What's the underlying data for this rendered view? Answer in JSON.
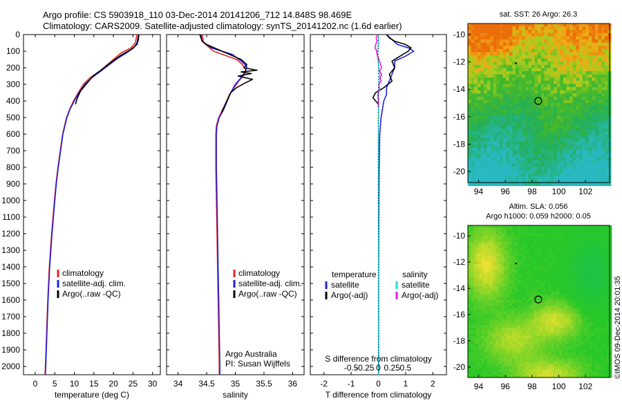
{
  "header": {
    "line1": "Argo profile: CS 5903918_110 03-Dec-2014 20141206_712 14.848S 98.469E",
    "line2": "Climatology: CARS2009. Satellite-adjusted climatology: synTS_20141202.nc (1.6d earlier)"
  },
  "stamp": "©IMOS 09-Dec-2014 20:01:35",
  "colors": {
    "climatology": "#e8231f",
    "satellite": "#1f1fe0",
    "argo": "#000000",
    "sal_satellite": "#22dcdc",
    "sal_argo": "#e020d8"
  },
  "depth_axis": {
    "range": [
      0,
      2050
    ],
    "ticks": [
      0,
      100,
      200,
      300,
      400,
      500,
      600,
      700,
      800,
      900,
      1000,
      1100,
      1200,
      1300,
      1400,
      1500,
      1600,
      1700,
      1800,
      1900,
      2000
    ]
  },
  "chart_data": [
    {
      "id": "temperature",
      "type": "line",
      "xlabel": "temperature (deg C)",
      "xlim": [
        -3,
        32
      ],
      "xticks": [
        0,
        5,
        10,
        15,
        20,
        25,
        30
      ],
      "legend": [
        "climatology",
        "satellite-adj. clim.",
        "Argo(..raw -QC)"
      ],
      "series": [
        {
          "name": "climatology",
          "color_key": "climatology",
          "depth": [
            0,
            50,
            80,
            110,
            140,
            180,
            220,
            260,
            300,
            350,
            400,
            450,
            500,
            600,
            700,
            800,
            900,
            1000,
            1200,
            1400,
            1600,
            1800,
            2000,
            2050
          ],
          "values": [
            26.0,
            25.6,
            24.5,
            22.0,
            20.5,
            18.5,
            16.5,
            14.0,
            12.3,
            11.0,
            9.8,
            8.8,
            8.0,
            7.0,
            6.4,
            5.8,
            5.3,
            4.9,
            4.2,
            3.6,
            3.2,
            2.9,
            2.6,
            2.5
          ]
        },
        {
          "name": "satellite-adj. clim.",
          "color_key": "satellite",
          "depth": [
            0,
            50,
            80,
            110,
            140,
            180,
            220,
            260,
            300,
            350,
            400,
            450,
            500,
            600,
            700,
            800,
            900,
            1000,
            1200,
            1400,
            1600,
            1800,
            2000,
            2050
          ],
          "values": [
            26.4,
            26.0,
            25.2,
            23.4,
            21.3,
            19.0,
            16.8,
            14.5,
            12.7,
            11.2,
            10.0,
            8.9,
            8.1,
            7.1,
            6.5,
            5.9,
            5.4,
            5.0,
            4.3,
            3.7,
            3.3,
            3.0,
            2.7,
            2.6
          ]
        },
        {
          "name": "Argo(..raw -QC)",
          "color_key": "argo",
          "depth": [
            0,
            30,
            60,
            90,
            120,
            160,
            200,
            250,
            300,
            340,
            380,
            420
          ],
          "values": [
            26.5,
            26.4,
            26.0,
            24.5,
            22.2,
            19.8,
            17.6,
            14.8,
            13.0,
            11.6,
            10.8,
            10.3
          ]
        }
      ]
    },
    {
      "id": "salinity",
      "type": "line",
      "xlabel": "salinity",
      "xlim": [
        33.8,
        36.2
      ],
      "xticks": [
        34,
        34.5,
        35,
        35.5,
        36
      ],
      "legend": [
        "climatology",
        "satellite-adj. clim.",
        "Argo(..raw -QC)"
      ],
      "annotation": [
        "Argo Australia",
        "PI: Susan Wijffels"
      ],
      "series": [
        {
          "name": "climatology",
          "color_key": "climatology",
          "depth": [
            0,
            50,
            100,
            150,
            180,
            210,
            240,
            280,
            320,
            360,
            400,
            450,
            500,
            550,
            600,
            800,
            1000,
            1200,
            1400,
            1600,
            1800,
            2000,
            2050
          ],
          "values": [
            34.42,
            34.45,
            34.62,
            35.02,
            35.12,
            35.18,
            35.16,
            35.06,
            34.98,
            34.9,
            34.85,
            34.78,
            34.71,
            34.67,
            34.66,
            34.66,
            34.67,
            34.68,
            34.69,
            34.7,
            34.71,
            34.72,
            34.72
          ]
        },
        {
          "name": "satellite-adj. clim.",
          "color_key": "satellite",
          "depth": [
            0,
            40,
            80,
            120,
            160,
            190,
            220,
            260,
            300,
            350,
            400,
            450,
            500,
            550,
            600,
            800,
            1000,
            1200,
            1400,
            1600,
            1800,
            2000,
            2050
          ],
          "values": [
            34.4,
            34.42,
            34.58,
            34.95,
            35.1,
            35.2,
            35.18,
            35.1,
            35.0,
            34.92,
            34.86,
            34.8,
            34.72,
            34.68,
            34.67,
            34.67,
            34.68,
            34.69,
            34.7,
            34.71,
            34.72,
            34.73,
            34.73
          ]
        },
        {
          "name": "Argo(..raw -QC)",
          "color_key": "argo",
          "depth": [
            0,
            20,
            40,
            60,
            90,
            120,
            150,
            180,
            200,
            215,
            225,
            235,
            250,
            270,
            290,
            320,
            350,
            380,
            410,
            440,
            470
          ],
          "values": [
            34.38,
            34.4,
            34.42,
            34.5,
            34.7,
            34.9,
            35.1,
            35.2,
            35.15,
            35.38,
            35.1,
            35.28,
            35.05,
            35.3,
            35.18,
            35.02,
            34.92,
            34.88,
            34.84,
            34.8,
            34.76
          ]
        }
      ]
    },
    {
      "id": "difference",
      "type": "line",
      "xlabel": "T difference from climatology",
      "xlabel_top": "S difference from climatology",
      "xlim": [
        -2.5,
        2.5
      ],
      "xticks": [
        -2,
        -1,
        0,
        1,
        2
      ],
      "xticks_top": [
        "-0.5",
        "-0.25",
        "0",
        "0.25",
        "0.5"
      ],
      "legend": {
        "temperature": [
          "satellite",
          "Argo(-adj)"
        ],
        "salinity": [
          "satellite",
          "Argo(-adj)"
        ]
      },
      "legend_titles": [
        "temperature",
        "salinity"
      ],
      "series": [
        {
          "name": "T satellite",
          "color_key": "satellite",
          "depth": [
            0,
            30,
            60,
            80,
            100,
            130,
            160,
            200,
            240,
            280,
            320,
            360,
            400,
            500,
            600,
            800,
            1000,
            1500,
            2050
          ],
          "values": [
            0.3,
            0.5,
            0.7,
            1.1,
            1.3,
            1.0,
            0.6,
            0.6,
            0.5,
            0.4,
            0.3,
            0.3,
            0.2,
            0.1,
            0.05,
            0.03,
            0.02,
            0.01,
            0.01
          ]
        },
        {
          "name": "T Argo(-adj)",
          "color_key": "argo",
          "depth": [
            0,
            20,
            40,
            60,
            80,
            100,
            130,
            160,
            200,
            240,
            280,
            320,
            350,
            380,
            400,
            420
          ],
          "values": [
            0.3,
            0.4,
            0.6,
            1.0,
            1.2,
            1.1,
            0.8,
            0.5,
            0.6,
            0.4,
            0.5,
            0.2,
            -0.1,
            -0.2,
            -0.1,
            0.0
          ]
        },
        {
          "name": "S satellite",
          "color_key": "sal_satellite",
          "depth": [
            0,
            50,
            100,
            150,
            200,
            250,
            300,
            350,
            400,
            500,
            700,
            1000,
            1500,
            2050
          ],
          "values": [
            0.0,
            0.0,
            -0.03,
            -0.02,
            0.02,
            0.04,
            0.02,
            0.01,
            0.01,
            0.0,
            0.0,
            0.0,
            0.01,
            0.01
          ]
        },
        {
          "name": "S Argo(-adj)",
          "color_key": "sal_argo",
          "depth": [
            0,
            20,
            40,
            60,
            80,
            100,
            120,
            150,
            180,
            200,
            220,
            240,
            260,
            280,
            300,
            330,
            360,
            400,
            440
          ],
          "values": [
            -0.03,
            -0.08,
            -0.05,
            -0.1,
            -0.12,
            -0.06,
            -0.05,
            0.02,
            0.08,
            0.12,
            0.04,
            0.12,
            0.06,
            0.1,
            0.02,
            0.04,
            -0.02,
            0.0,
            0.0
          ]
        }
      ]
    },
    {
      "id": "sst_map",
      "type": "heatmap",
      "title": "sat. SST: 26 Argo: 26.3",
      "xticks": [
        94,
        96,
        98,
        100,
        102
      ],
      "yticks": [
        -10,
        -12,
        -14,
        -16,
        -18,
        -20
      ],
      "xlim": [
        93.2,
        103.8
      ],
      "ylim": [
        -20.8,
        -9.2
      ],
      "float_position": {
        "lon": 98.469,
        "lat": -14.848
      },
      "previous_position": {
        "lon": 96.8,
        "lat": -12.1
      }
    },
    {
      "id": "sla_map",
      "type": "heatmap",
      "title": [
        "Altim. SLA: 0.056",
        "Argo h1000: 0.059 h2000: 0.05"
      ],
      "xticks": [
        94,
        96,
        98,
        100,
        102
      ],
      "yticks": [
        -10,
        -12,
        -14,
        -16,
        -18,
        -20
      ],
      "xlim": [
        93.2,
        103.8
      ],
      "ylim": [
        -20.8,
        -9.2
      ],
      "float_position": {
        "lon": 98.469,
        "lat": -14.848
      },
      "previous_position": {
        "lon": 96.8,
        "lat": -12.1
      }
    }
  ]
}
